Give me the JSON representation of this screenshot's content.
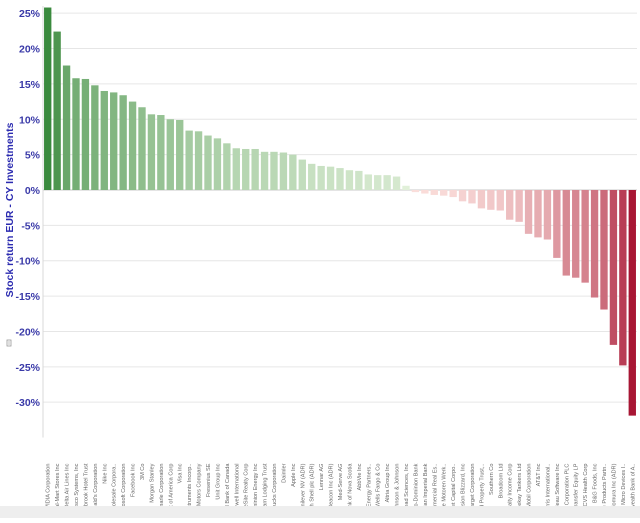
{
  "chart_data": {
    "type": "bar",
    "ylabel": "Stock return EUR - CY Investments",
    "ylim": [
      -35,
      26
    ],
    "yticks": [
      25,
      20,
      15,
      10,
      5,
      0,
      -5,
      -10,
      -15,
      -20,
      -25,
      -30
    ],
    "ytick_labels": [
      "25%",
      "20%",
      "15%",
      "10%",
      "5%",
      "0%",
      "-5%",
      "-10%",
      "-15%",
      "-20%",
      "-25%",
      "-30%"
    ],
    "grid": true,
    "categories": [
      "NVIDIA Corporation",
      "Wal-Mart Stores Inc",
      "Delta Air Lines Inc",
      "Cisco Systems, Inc",
      "Pebblebrook Hotel Trust",
      "McDonald's Corporation",
      "Nike Inc",
      "Costco Wholesale Corpora..",
      "Microsoft Corporation",
      "Facebook Inc",
      "3M Co",
      "Morgan Stanley",
      "Albemarle Corporation",
      "Bank of America Corp",
      "Visa Inc",
      "Texas Instruments Incorp..",
      "General Motors Company",
      "Fresenius SE",
      "Unit Group Inc",
      "Royal Bank of Canada",
      "Honeywell International",
      "CoreSite Realty Corp",
      "Dominion Energy Inc",
      "Chatham Lodging Trust",
      "Starbucks Corporation",
      "Daimler",
      "Apple Inc",
      "Unilever NV (ADR)",
      "Royal Dutch Shell plc (ADR)",
      "Lennar AG",
      "Beacon Inc (ADR)",
      "Med-Serve AG",
      "Bank of Nova Scotia",
      "AbbVie Inc",
      "Spectra Energy Partners..",
      "Wells Fargo & Co",
      "Altria Group Inc",
      "Johnson & Johnson",
      "Gilead Sciences, Inc",
      "Toronto-Dominion Bank",
      "Canadian Imperial Bank",
      "Apollo Commercial Real Es..",
      "Bayerische Motoren Werk..",
      "Main Street Capital Corpo..",
      "Activision Blizzard, Inc",
      "Target Corporation",
      "Starwood Property Trust,..",
      "Southern Co",
      "Broadcom Ltd",
      "Realty Income Corp",
      "Teekay Tankers Ltd",
      "Exxon Mobil Corporation",
      "AT&T Inc",
      "Philip Morris International..",
      "Tableau Software Inc",
      "Atlassian Corporation PLC",
      "Energy Transfer Equity LP",
      "CVS Health Corp",
      "B&G Foods, Inc",
      "Enterprise Products Partn..",
      "Nomura Inc (ADR)",
      "Advanced Micro Devices I..",
      "Commonwealth Bank of A.."
    ],
    "values": [
      25.8,
      22.4,
      17.6,
      15.8,
      15.7,
      14.8,
      14.0,
      13.8,
      13.4,
      12.5,
      11.7,
      10.7,
      10.6,
      10.0,
      9.9,
      8.4,
      8.3,
      7.7,
      7.3,
      6.6,
      5.9,
      5.8,
      5.8,
      5.4,
      5.4,
      5.3,
      5.0,
      4.3,
      3.7,
      3.4,
      3.3,
      3.1,
      2.8,
      2.7,
      2.2,
      2.1,
      2.1,
      1.9,
      0.6,
      -0.3,
      -0.5,
      -0.7,
      -0.8,
      -1.0,
      -1.6,
      -1.9,
      -2.6,
      -2.8,
      -2.9,
      -4.2,
      -4.5,
      -6.2,
      -6.7,
      -7.0,
      -9.6,
      -12.1,
      -12.4,
      -13.1,
      -15.2,
      -16.9,
      -21.9,
      -24.8,
      -31.9
    ]
  }
}
